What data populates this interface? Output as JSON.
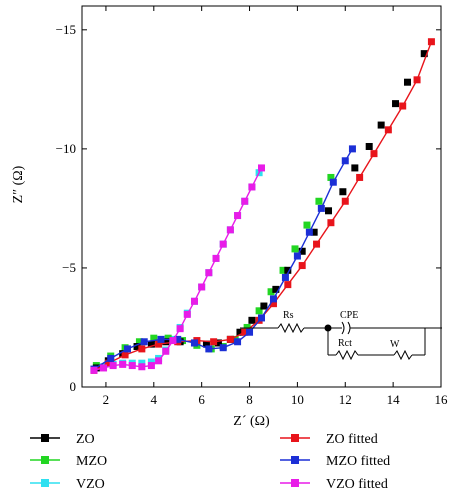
{
  "chart_data": {
    "type": "scatter",
    "xlabel": "Z´ (Ω)",
    "ylabel": "Z″ (Ω)",
    "xlim": [
      1,
      16
    ],
    "ylim": [
      0,
      -16
    ],
    "x_ticks": [
      2,
      4,
      6,
      8,
      10,
      12,
      14,
      16
    ],
    "y_ticks": [
      0,
      -5,
      -10,
      -15
    ],
    "legend_position": "bottom",
    "series": [
      {
        "name": "ZO",
        "color": "#000000",
        "kind": "markers",
        "x": [
          1.6,
          2.1,
          2.7,
          3.3,
          3.9,
          4.5,
          5.1,
          5.7,
          6.2,
          6.7,
          7.2,
          7.6,
          8.1,
          8.6,
          9.1,
          9.6,
          10.2,
          10.7,
          11.3,
          11.9,
          12.4,
          13.0,
          13.5,
          14.1,
          14.6,
          15.3
        ],
        "y": [
          -0.8,
          -1.1,
          -1.4,
          -1.7,
          -1.8,
          -1.9,
          -1.9,
          -1.85,
          -1.8,
          -1.85,
          -2.0,
          -2.3,
          -2.8,
          -3.4,
          -4.1,
          -4.9,
          -5.7,
          -6.5,
          -7.4,
          -8.2,
          -9.2,
          -10.1,
          -11.0,
          -11.9,
          -12.8,
          -14.0
        ]
      },
      {
        "name": "ZO fitted",
        "color": "#e8141b",
        "kind": "line-markers",
        "x": [
          1.5,
          2.1,
          2.8,
          3.5,
          4.2,
          5.0,
          5.8,
          6.5,
          7.2,
          7.8,
          8.4,
          9.0,
          9.6,
          10.2,
          10.8,
          11.4,
          12.0,
          12.6,
          13.2,
          13.8,
          14.4,
          15.0,
          15.6
        ],
        "y": [
          -0.7,
          -1.0,
          -1.35,
          -1.6,
          -1.8,
          -1.9,
          -1.95,
          -1.9,
          -2.0,
          -2.3,
          -2.8,
          -3.5,
          -4.3,
          -5.1,
          -6.0,
          -6.9,
          -7.8,
          -8.8,
          -9.8,
          -10.8,
          -11.8,
          -12.9,
          -14.5
        ]
      },
      {
        "name": "MZO",
        "color": "#22d622",
        "kind": "markers",
        "x": [
          1.6,
          2.2,
          2.8,
          3.4,
          4.0,
          4.6,
          5.2,
          5.8,
          6.4,
          6.9,
          7.4,
          7.9,
          8.4,
          8.9,
          9.4,
          9.9,
          10.4,
          10.9,
          11.4
        ],
        "y": [
          -0.9,
          -1.3,
          -1.65,
          -1.9,
          -2.05,
          -2.05,
          -1.95,
          -1.75,
          -1.6,
          -1.7,
          -2.0,
          -2.5,
          -3.2,
          -4.0,
          -4.9,
          -5.8,
          -6.8,
          -7.8,
          -8.8
        ]
      },
      {
        "name": "MZO fitted",
        "color": "#1c2fd6",
        "kind": "line-markers",
        "x": [
          1.5,
          2.2,
          2.9,
          3.6,
          4.3,
          5.0,
          5.7,
          6.3,
          6.9,
          7.5,
          8.0,
          8.5,
          9.0,
          9.5,
          10.0,
          10.5,
          11.0,
          11.5,
          12.0,
          12.3
        ],
        "y": [
          -0.75,
          -1.2,
          -1.6,
          -1.9,
          -2.0,
          -2.0,
          -1.85,
          -1.6,
          -1.65,
          -1.9,
          -2.3,
          -2.9,
          -3.7,
          -4.6,
          -5.5,
          -6.5,
          -7.5,
          -8.6,
          -9.5,
          -10.0
        ]
      },
      {
        "name": "VZO",
        "color": "#2ee0f0",
        "kind": "markers",
        "x": [
          1.5,
          1.9,
          2.3,
          2.7,
          3.1,
          3.5,
          3.9,
          4.2,
          4.5,
          4.8,
          5.1,
          5.4,
          5.7,
          6.0,
          6.3,
          6.6,
          6.9,
          7.2,
          7.5,
          7.8,
          8.1,
          8.4
        ],
        "y": [
          -0.75,
          -0.85,
          -0.95,
          -1.0,
          -1.0,
          -1.0,
          -1.05,
          -1.2,
          -1.55,
          -2.0,
          -2.5,
          -3.1,
          -3.6,
          -4.2,
          -4.8,
          -5.4,
          -6.0,
          -6.6,
          -7.2,
          -7.8,
          -8.4,
          -9.0
        ]
      },
      {
        "name": "VZO fitted",
        "color": "#e81ce8",
        "kind": "line-markers",
        "x": [
          1.5,
          1.9,
          2.3,
          2.7,
          3.1,
          3.5,
          3.9,
          4.2,
          4.5,
          4.8,
          5.1,
          5.4,
          5.7,
          6.0,
          6.3,
          6.6,
          6.9,
          7.2,
          7.5,
          7.8,
          8.1,
          8.5
        ],
        "y": [
          -0.7,
          -0.8,
          -0.9,
          -0.95,
          -0.9,
          -0.85,
          -0.9,
          -1.1,
          -1.5,
          -1.95,
          -2.45,
          -3.05,
          -3.6,
          -4.2,
          -4.8,
          -5.4,
          -6.0,
          -6.6,
          -7.2,
          -7.8,
          -8.4,
          -9.2
        ]
      }
    ],
    "circuit_labels": {
      "rs": "Rs",
      "cpe": "CPE",
      "rct": "Rct",
      "w": "W"
    }
  }
}
